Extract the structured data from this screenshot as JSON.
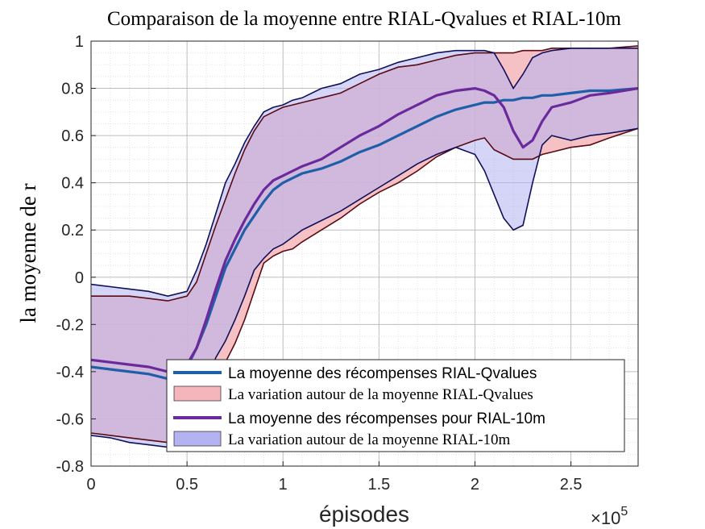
{
  "chart_data": {
    "type": "area",
    "title": "Comparaison de la moyenne entre RIAL-Qvalues et RIAL-10m",
    "xlabel": "épisodes",
    "ylabel": "la moyenne de r",
    "x_multiplier": "×10",
    "x_multiplier_exp": "5",
    "xlim": [
      0,
      2.85
    ],
    "ylim": [
      -0.8,
      1.0
    ],
    "xticks": [
      0,
      0.5,
      1,
      1.5,
      2,
      2.5
    ],
    "xtick_labels": [
      "0",
      "0.5",
      "1",
      "1.5",
      "2",
      "2.5"
    ],
    "yticks": [
      -0.8,
      -0.6,
      -0.4,
      -0.2,
      0,
      0.2,
      0.4,
      0.6,
      0.8,
      1.0
    ],
    "ytick_labels": [
      "-0.8",
      "-0.6",
      "-0.4",
      "-0.2",
      "0",
      "0.2",
      "0.4",
      "0.6",
      "0.8",
      "1"
    ],
    "grid": true,
    "legend_position": "bottom-right",
    "x": [
      0,
      0.1,
      0.2,
      0.3,
      0.4,
      0.5,
      0.55,
      0.6,
      0.65,
      0.7,
      0.75,
      0.8,
      0.85,
      0.9,
      0.95,
      1.0,
      1.05,
      1.1,
      1.2,
      1.3,
      1.4,
      1.5,
      1.6,
      1.7,
      1.8,
      1.9,
      2.0,
      2.05,
      2.1,
      2.15,
      2.2,
      2.25,
      2.3,
      2.35,
      2.4,
      2.5,
      2.6,
      2.7,
      2.85
    ],
    "series": [
      {
        "name": "La moyenne des récompenses RIAL-Qvalues",
        "kind": "line",
        "color": "#1f5fa8",
        "values": [
          -0.38,
          -0.39,
          -0.4,
          -0.41,
          -0.43,
          -0.38,
          -0.3,
          -0.2,
          -0.08,
          0.04,
          0.12,
          0.2,
          0.26,
          0.32,
          0.37,
          0.4,
          0.42,
          0.44,
          0.46,
          0.49,
          0.53,
          0.56,
          0.6,
          0.64,
          0.68,
          0.71,
          0.73,
          0.74,
          0.74,
          0.75,
          0.75,
          0.76,
          0.76,
          0.77,
          0.77,
          0.78,
          0.79,
          0.79,
          0.8
        ]
      },
      {
        "name": "La variation autour de la moyenne RIAL-Qvalues",
        "kind": "band",
        "color": "#f4b6bb",
        "edge": "#5a0a12",
        "upper": [
          -0.08,
          -0.08,
          -0.08,
          -0.09,
          -0.1,
          -0.08,
          -0.02,
          0.1,
          0.22,
          0.33,
          0.44,
          0.54,
          0.62,
          0.68,
          0.7,
          0.72,
          0.73,
          0.74,
          0.76,
          0.78,
          0.82,
          0.86,
          0.89,
          0.9,
          0.92,
          0.94,
          0.95,
          0.95,
          0.95,
          0.95,
          0.95,
          0.96,
          0.96,
          0.96,
          0.97,
          0.97,
          0.97,
          0.97,
          0.98
        ],
        "lower": [
          -0.66,
          -0.67,
          -0.68,
          -0.69,
          -0.7,
          -0.68,
          -0.6,
          -0.5,
          -0.42,
          -0.36,
          -0.28,
          -0.18,
          -0.06,
          0.06,
          0.09,
          0.11,
          0.12,
          0.15,
          0.2,
          0.25,
          0.31,
          0.36,
          0.4,
          0.45,
          0.51,
          0.55,
          0.58,
          0.59,
          0.54,
          0.52,
          0.5,
          0.5,
          0.5,
          0.52,
          0.53,
          0.55,
          0.56,
          0.59,
          0.63
        ]
      },
      {
        "name": "La moyenne des récompenses pour RIAL-10m",
        "kind": "line",
        "color": "#6a2a9c",
        "values": [
          -0.35,
          -0.36,
          -0.37,
          -0.38,
          -0.4,
          -0.37,
          -0.3,
          -0.18,
          -0.05,
          0.07,
          0.16,
          0.24,
          0.31,
          0.37,
          0.41,
          0.43,
          0.45,
          0.47,
          0.5,
          0.55,
          0.6,
          0.64,
          0.69,
          0.73,
          0.77,
          0.79,
          0.8,
          0.79,
          0.77,
          0.72,
          0.62,
          0.55,
          0.58,
          0.66,
          0.72,
          0.74,
          0.77,
          0.78,
          0.8
        ]
      },
      {
        "name": "La variation autour de la moyenne RIAL-10m",
        "kind": "band",
        "color": "#b3b3f2",
        "edge": "#10105a",
        "upper": [
          -0.03,
          -0.04,
          -0.05,
          -0.06,
          -0.08,
          -0.06,
          0.03,
          0.14,
          0.27,
          0.4,
          0.48,
          0.57,
          0.64,
          0.7,
          0.72,
          0.73,
          0.75,
          0.76,
          0.8,
          0.82,
          0.86,
          0.88,
          0.91,
          0.93,
          0.95,
          0.96,
          0.96,
          0.96,
          0.95,
          0.88,
          0.8,
          0.86,
          0.93,
          0.95,
          0.96,
          0.97,
          0.97,
          0.97,
          0.97
        ],
        "lower": [
          -0.67,
          -0.68,
          -0.7,
          -0.71,
          -0.72,
          -0.67,
          -0.56,
          -0.44,
          -0.34,
          -0.27,
          -0.18,
          -0.08,
          0.03,
          0.08,
          0.12,
          0.14,
          0.17,
          0.2,
          0.24,
          0.28,
          0.33,
          0.38,
          0.43,
          0.48,
          0.52,
          0.55,
          0.52,
          0.45,
          0.35,
          0.25,
          0.2,
          0.22,
          0.4,
          0.56,
          0.6,
          0.58,
          0.6,
          0.61,
          0.63
        ]
      }
    ]
  }
}
